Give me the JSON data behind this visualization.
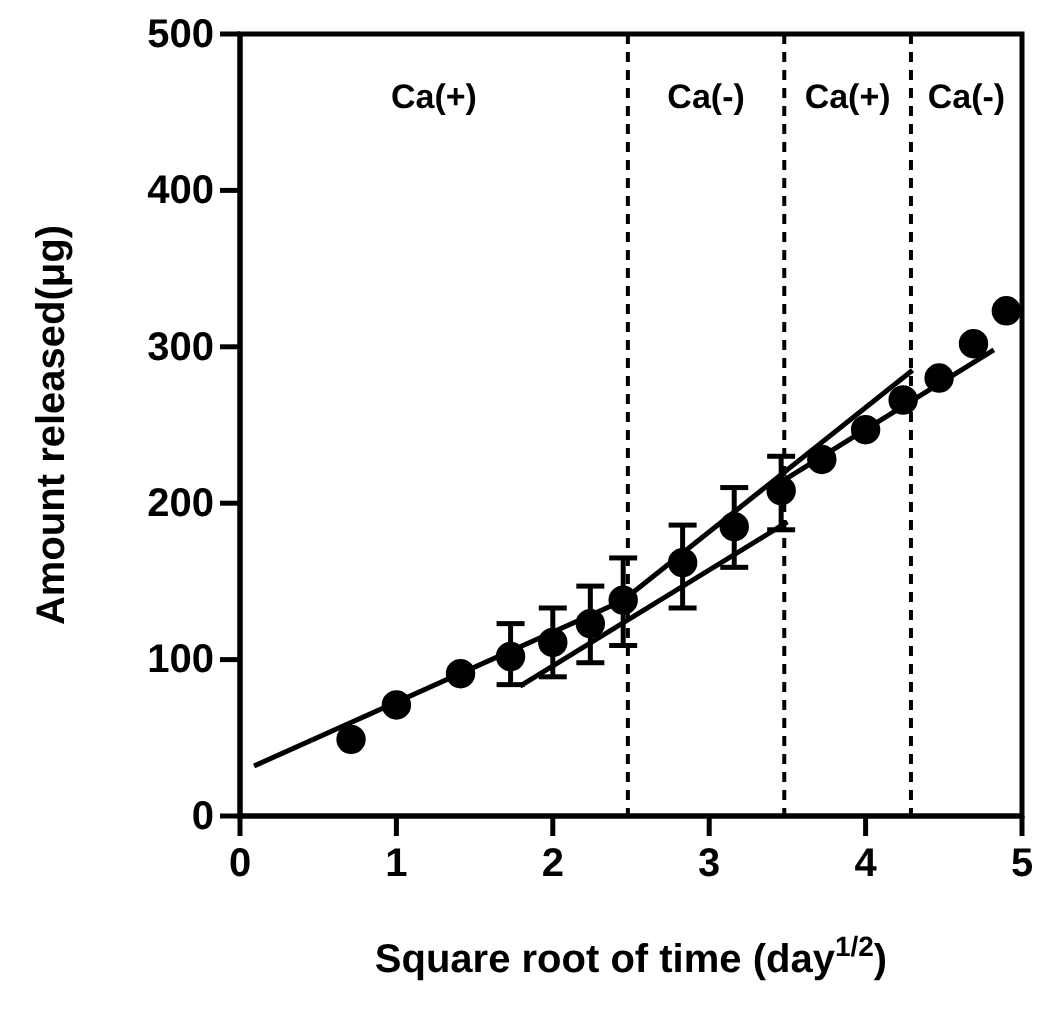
{
  "chart_data": {
    "type": "scatter",
    "xlabel": "Square root of time (day$^{1/2}$)",
    "ylabel": "Amount released(μg)",
    "xlim": [
      0,
      5
    ],
    "xticks": [
      0,
      1,
      2,
      3,
      4,
      5
    ],
    "ylim": [
      0,
      500
    ],
    "yticks": [
      0,
      100,
      200,
      300,
      400,
      500
    ],
    "grid": false,
    "series": [
      {
        "type": "scatter",
        "color": "#000000",
        "marker": "circle",
        "x": [
          0.71,
          1.0,
          1.41,
          1.73,
          2.0,
          2.24,
          2.45,
          2.83,
          3.16,
          3.46,
          3.72,
          4.0,
          4.24,
          4.47,
          4.69,
          4.9
        ],
        "values": [
          49,
          71,
          91,
          102,
          111,
          123,
          138,
          162,
          185,
          208,
          228,
          247,
          266,
          280,
          302,
          323
        ],
        "errors": [
          null,
          null,
          null,
          [
            84,
            123
          ],
          [
            89,
            133
          ],
          [
            98,
            147
          ],
          [
            109,
            165
          ],
          [
            133,
            186
          ],
          [
            159,
            210
          ],
          [
            183,
            230
          ],
          null,
          null,
          null,
          null,
          null,
          null
        ]
      },
      {
        "type": "line",
        "color": "#000000",
        "marker": "none",
        "line_style": "solid",
        "x": [
          0.09,
          2.5
        ],
        "values": [
          32,
          140
        ]
      },
      {
        "type": "line",
        "color": "#000000",
        "marker": "none",
        "line_style": "solid",
        "x": [
          1.79,
          3.5
        ],
        "values": [
          83,
          188
        ]
      },
      {
        "type": "line",
        "color": "#000000",
        "marker": "none",
        "line_style": "solid",
        "x": [
          2.45,
          4.3
        ],
        "values": [
          138,
          285
        ]
      },
      {
        "type": "line",
        "color": "#000000",
        "marker": "none",
        "line_style": "solid",
        "x": [
          3.45,
          4.82
        ],
        "values": [
          213,
          298
        ]
      }
    ],
    "ref_lines": [
      {
        "axis": "x",
        "value": 2.48,
        "line_style": "dashed",
        "color": "#000000"
      },
      {
        "axis": "x",
        "value": 3.48,
        "line_style": "dashed",
        "color": "#000000"
      },
      {
        "axis": "x",
        "value": 4.29,
        "line_style": "dashed",
        "color": "#000000"
      }
    ],
    "annotations": [
      "Ca(+)",
      "Ca(-)",
      "Ca(+)",
      "Ca(-)"
    ]
  }
}
